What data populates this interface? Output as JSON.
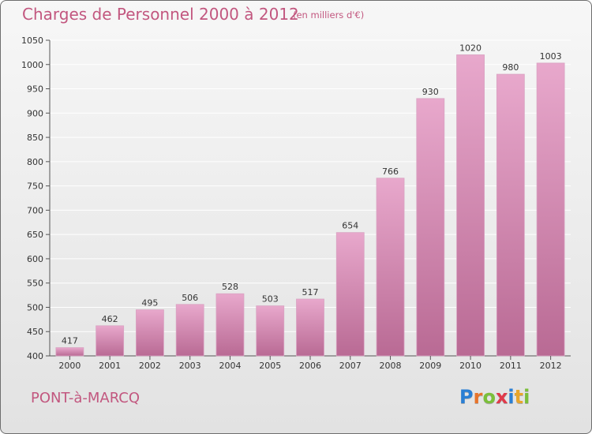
{
  "title": "Charges de Personnel 2000 à 2012",
  "unit_note": "(en milliers d'€)",
  "commune": "PONT-à-MARCQ",
  "logo": {
    "letters": [
      "P",
      "r",
      "o",
      "x",
      "i",
      "t",
      "i"
    ],
    "colors": [
      "#2a7fd4",
      "#e8742b",
      "#7bbf3a",
      "#e03a4a",
      "#2a7fd4",
      "#e8a62b",
      "#7bbf3a"
    ]
  },
  "colors": {
    "bar_top": "#e8a8cc",
    "bar_bottom": "#b96a94",
    "text_accent": "#c2577f"
  },
  "chart_data": {
    "type": "bar",
    "title": "Charges de Personnel 2000 à 2012",
    "categories": [
      "2000",
      "2001",
      "2002",
      "2003",
      "2004",
      "2005",
      "2006",
      "2007",
      "2008",
      "2009",
      "2010",
      "2011",
      "2012"
    ],
    "values": [
      417,
      462,
      495,
      506,
      528,
      503,
      517,
      654,
      766,
      930,
      1020,
      980,
      1003
    ],
    "ylim": [
      400,
      1050
    ],
    "yticks": [
      400,
      450,
      500,
      550,
      600,
      650,
      700,
      750,
      800,
      850,
      900,
      950,
      1000,
      1050
    ],
    "grid": true,
    "xlabel": "",
    "ylabel": ""
  }
}
